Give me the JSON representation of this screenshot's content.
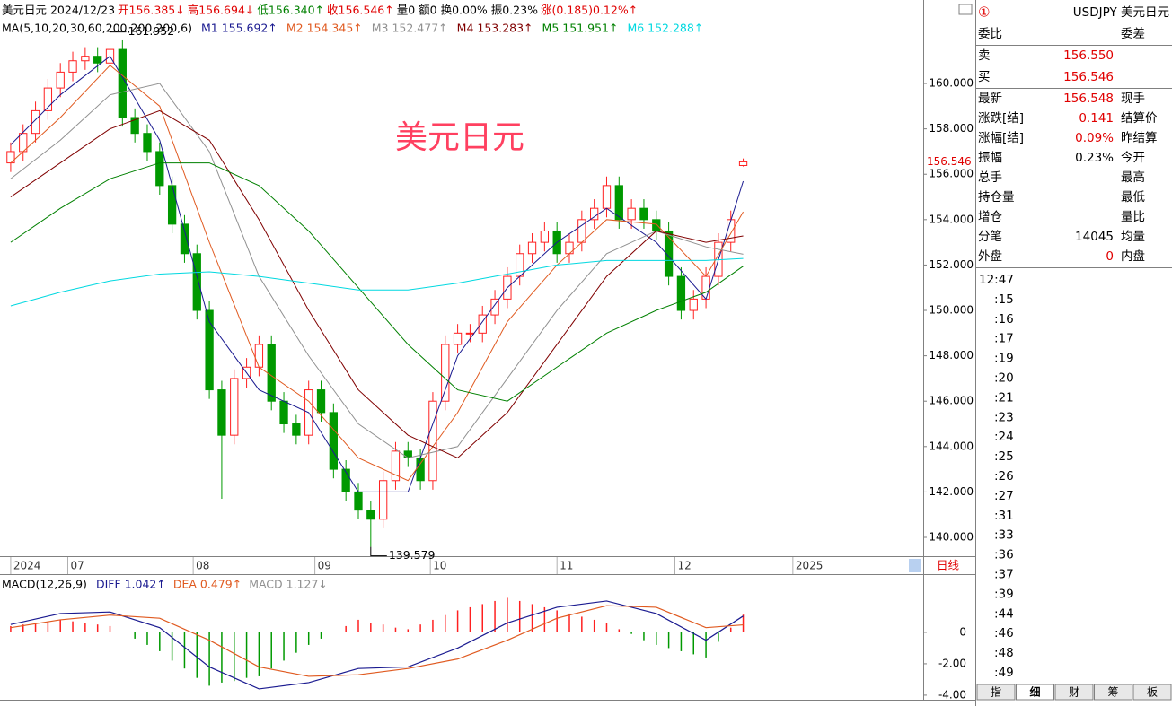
{
  "header": {
    "segments": [
      {
        "text": "美元日元 2024/12/23",
        "color": "#000000"
      },
      {
        "text": "开156.385↓",
        "color": "#e00000"
      },
      {
        "text": "高156.694↓",
        "color": "#e00000"
      },
      {
        "text": "低156.340↑",
        "color": "#008000"
      },
      {
        "text": "收156.546↑",
        "color": "#e00000"
      },
      {
        "text": "量0 额0 换0.00% 振0.23%",
        "color": "#000000"
      },
      {
        "text": "涨(0.185)0.12%↑",
        "color": "#e00000"
      }
    ]
  },
  "watermark": "美元日元",
  "period_tab": "日线",
  "last_price_label": "156.546",
  "chart_data": [
    {
      "type": "candlestick",
      "legend_title": "MA(5,10,20,30,60,200,200,200,6)",
      "xlim": [
        -0.5,
        73.5
      ],
      "xticks": [
        {
          "value": 0,
          "label": "2024"
        },
        {
          "value": 4.6,
          "label": "07"
        },
        {
          "value": 14.7,
          "label": "08"
        },
        {
          "value": 24.5,
          "label": "09"
        },
        {
          "value": 33.8,
          "label": "10"
        },
        {
          "value": 44,
          "label": "11"
        },
        {
          "value": 53.5,
          "label": "12"
        },
        {
          "value": 63,
          "label": "2025"
        }
      ],
      "ylim": [
        139.17,
        163.48
      ],
      "yticks": [
        {
          "value": 140,
          "label": "140.000"
        },
        {
          "value": 142,
          "label": "142.000"
        },
        {
          "value": 144,
          "label": "144.000"
        },
        {
          "value": 146,
          "label": "146.000"
        },
        {
          "value": 148,
          "label": "148.000"
        },
        {
          "value": 150,
          "label": "150.000"
        },
        {
          "value": 152,
          "label": "152.000"
        },
        {
          "value": 154,
          "label": "154.000"
        },
        {
          "value": 156,
          "label": "156.000"
        },
        {
          "value": 158,
          "label": "158.000"
        },
        {
          "value": 160,
          "label": "160.000"
        }
      ],
      "up_color": "#ff2020",
      "down_color": "#009900",
      "open": [
        156.5,
        157.0,
        157.8,
        158.8,
        159.8,
        160.5,
        161.0,
        161.2,
        160.9,
        161.5,
        158.5,
        157.8,
        157.0,
        155.5,
        153.8,
        152.5,
        150.0,
        146.5,
        144.5,
        147.0,
        147.5,
        148.5,
        146.0,
        145.0,
        144.5,
        146.5,
        145.5,
        143.0,
        142.0,
        141.2,
        140.8,
        142.5,
        143.8,
        143.5,
        142.5,
        146.0,
        148.5,
        149.0,
        149.0,
        149.8,
        150.5,
        151.5,
        152.5,
        153.0,
        153.5,
        152.5,
        153.0,
        154.0,
        154.5,
        155.5,
        154.0,
        154.5,
        154.0,
        153.5,
        151.5,
        150.0,
        150.5,
        151.5,
        153.0,
        156.385
      ],
      "high": [
        157.4,
        158.2,
        159.2,
        160.2,
        160.9,
        161.4,
        161.6,
        161.6,
        161.952,
        161.9,
        158.9,
        158.2,
        157.4,
        155.9,
        154.2,
        152.9,
        150.4,
        146.9,
        147.4,
        147.9,
        148.9,
        148.9,
        146.4,
        145.4,
        146.9,
        146.9,
        145.9,
        143.4,
        142.4,
        141.6,
        142.9,
        144.2,
        144.2,
        143.9,
        146.4,
        148.9,
        149.4,
        149.4,
        150.2,
        150.9,
        151.9,
        152.9,
        153.4,
        153.9,
        153.9,
        153.4,
        154.4,
        154.9,
        155.9,
        155.9,
        154.9,
        154.9,
        154.4,
        153.9,
        151.9,
        150.9,
        151.9,
        153.4,
        154.4,
        156.694
      ],
      "low": [
        156.1,
        156.6,
        157.4,
        158.4,
        159.4,
        160.1,
        160.6,
        160.5,
        160.5,
        158.1,
        157.4,
        156.6,
        155.1,
        153.4,
        152.1,
        149.6,
        146.1,
        141.7,
        144.1,
        146.6,
        147.1,
        145.6,
        144.6,
        144.1,
        144.1,
        145.1,
        142.6,
        141.6,
        140.8,
        139.579,
        140.4,
        142.1,
        143.1,
        142.1,
        142.1,
        145.6,
        148.1,
        148.6,
        148.6,
        149.4,
        150.1,
        151.1,
        152.1,
        152.6,
        152.1,
        152.1,
        152.6,
        153.6,
        154.1,
        153.6,
        153.6,
        153.6,
        153.1,
        151.1,
        149.6,
        149.6,
        150.1,
        151.1,
        152.6,
        156.34
      ],
      "close": [
        157.0,
        157.8,
        158.8,
        159.8,
        160.5,
        161.0,
        161.2,
        160.9,
        161.5,
        158.5,
        157.8,
        157.0,
        155.5,
        153.8,
        152.5,
        150.0,
        146.5,
        144.5,
        147.0,
        147.5,
        148.5,
        146.0,
        145.0,
        144.5,
        146.5,
        145.5,
        143.0,
        142.0,
        141.2,
        140.8,
        142.5,
        143.8,
        143.5,
        142.5,
        146.0,
        148.5,
        149.0,
        149.0,
        149.8,
        150.5,
        151.5,
        152.5,
        153.0,
        153.5,
        152.5,
        153.0,
        154.0,
        154.5,
        155.5,
        154.0,
        154.5,
        154.0,
        153.5,
        151.5,
        150.0,
        150.5,
        151.5,
        153.0,
        154.0,
        156.546
      ],
      "annotations": [
        {
          "text": "161.952",
          "x": 8,
          "y": 161.952
        },
        {
          "text": "139.579",
          "x": 29,
          "y": 139.579
        }
      ],
      "series": [
        {
          "name": "M1 155.692↑",
          "color": "#1a1a90",
          "x": [
            0,
            4,
            8,
            12,
            16,
            20,
            24,
            28,
            32,
            36,
            40,
            44,
            48,
            52,
            56,
            59
          ],
          "values": [
            157.3,
            159.5,
            161.2,
            157.5,
            149.5,
            146.5,
            145.5,
            142.0,
            142.0,
            148.0,
            151.0,
            153.0,
            154.5,
            153.0,
            150.5,
            155.692
          ]
        },
        {
          "name": "M2 154.345↑",
          "color": "#e05a20",
          "x": [
            0,
            4,
            8,
            12,
            16,
            20,
            24,
            28,
            32,
            36,
            40,
            44,
            48,
            52,
            56,
            59
          ],
          "values": [
            156.5,
            158.5,
            160.8,
            159.0,
            153.0,
            147.5,
            146.0,
            143.5,
            142.5,
            145.5,
            149.5,
            152.0,
            154.0,
            153.8,
            151.5,
            154.345
          ]
        },
        {
          "name": "M3 152.477↑",
          "color": "#909090",
          "x": [
            0,
            4,
            8,
            12,
            16,
            20,
            24,
            28,
            32,
            36,
            40,
            44,
            48,
            52,
            56,
            59
          ],
          "values": [
            155.8,
            157.5,
            159.5,
            160.0,
            157.0,
            151.5,
            148.0,
            145.0,
            143.5,
            144.0,
            147.0,
            150.0,
            152.5,
            153.5,
            152.8,
            152.477
          ]
        },
        {
          "name": "M4 153.283↑",
          "color": "#800000",
          "x": [
            0,
            4,
            8,
            12,
            16,
            20,
            24,
            28,
            32,
            36,
            40,
            44,
            48,
            52,
            56,
            59
          ],
          "values": [
            155.0,
            156.5,
            158.0,
            158.8,
            157.5,
            154.0,
            150.0,
            146.5,
            144.5,
            143.5,
            145.5,
            148.5,
            151.5,
            153.5,
            153.0,
            153.283
          ]
        },
        {
          "name": "M5 151.951↑",
          "color": "#008000",
          "x": [
            0,
            4,
            8,
            12,
            16,
            20,
            24,
            28,
            32,
            36,
            40,
            44,
            48,
            52,
            56,
            59
          ],
          "values": [
            153.0,
            154.5,
            155.8,
            156.5,
            156.5,
            155.5,
            153.5,
            151.0,
            148.5,
            146.5,
            146.0,
            147.5,
            149.0,
            150.0,
            150.8,
            151.951
          ]
        },
        {
          "name": "M6 152.288↑",
          "color": "#00d8e0",
          "x": [
            0,
            4,
            8,
            12,
            16,
            20,
            24,
            28,
            32,
            36,
            40,
            44,
            48,
            52,
            56,
            59
          ],
          "values": [
            150.2,
            150.8,
            151.3,
            151.6,
            151.7,
            151.5,
            151.2,
            150.9,
            150.9,
            151.2,
            151.6,
            152.0,
            152.2,
            152.2,
            152.2,
            152.288
          ]
        }
      ]
    },
    {
      "type": "macd",
      "legend_title": "MACD(12,26,9)",
      "xlim": [
        -0.5,
        73.5
      ],
      "ylim": [
        -4.29,
        3.71
      ],
      "yticks": [
        0,
        {
          "value": -2,
          "label": "-2.00"
        },
        {
          "value": -4,
          "label": "-4.00"
        }
      ],
      "series": [
        {
          "name": "DIFF 1.042↑",
          "color": "#1a1a90",
          "x": [
            0,
            4,
            8,
            12,
            16,
            20,
            24,
            28,
            32,
            36,
            40,
            44,
            48,
            52,
            56,
            59
          ],
          "values": [
            0.5,
            1.2,
            1.3,
            0.3,
            -2.2,
            -3.6,
            -3.2,
            -2.3,
            -2.2,
            -1.0,
            0.6,
            1.6,
            2.0,
            1.2,
            -0.5,
            1.042
          ]
        },
        {
          "name": "DEA 0.479↑",
          "color": "#e05a20",
          "x": [
            0,
            4,
            8,
            12,
            16,
            20,
            24,
            28,
            32,
            36,
            40,
            44,
            48,
            52,
            56,
            59
          ],
          "values": [
            0.3,
            0.8,
            1.1,
            0.9,
            -0.5,
            -2.2,
            -2.8,
            -2.7,
            -2.3,
            -1.7,
            -0.5,
            0.9,
            1.7,
            1.6,
            0.3,
            0.479
          ]
        }
      ],
      "histogram": {
        "name": "MACD 1.127↓",
        "color": "#909090",
        "up_color": "#ff2020",
        "down_color": "#009900",
        "values": [
          0.4,
          0.5,
          0.6,
          0.7,
          0.8,
          0.7,
          0.6,
          0.5,
          0.4,
          0.0,
          -0.4,
          -0.8,
          -1.2,
          -1.8,
          -2.3,
          -2.9,
          -3.4,
          -3.2,
          -3.1,
          -2.9,
          -2.8,
          -2.3,
          -1.8,
          -1.3,
          -0.8,
          -0.4,
          0.0,
          0.4,
          0.8,
          0.6,
          0.5,
          0.3,
          0.2,
          0.5,
          0.8,
          1.1,
          1.4,
          1.6,
          1.8,
          2.0,
          2.2,
          2.0,
          1.8,
          1.6,
          1.4,
          1.2,
          1.0,
          0.8,
          0.6,
          0.2,
          -0.1,
          -0.5,
          -0.8,
          -1.0,
          -1.2,
          -1.4,
          -1.6,
          -0.6,
          0.3,
          1.127
        ]
      }
    }
  ],
  "quote_panel": {
    "badge": "①",
    "symbol": "USDJPY 美元日元",
    "rows": [
      [
        {
          "text": "委比"
        },
        {
          "text": ""
        },
        {
          "text": "委差"
        }
      ],
      [
        {
          "text": "卖"
        },
        {
          "text": "156.550",
          "color": "#e00000"
        },
        null
      ],
      [
        {
          "text": "买"
        },
        {
          "text": "156.546",
          "color": "#e00000"
        },
        null
      ],
      [
        {
          "text": "最新"
        },
        {
          "text": "156.548",
          "color": "#e00000"
        },
        {
          "text": "现手"
        }
      ],
      [
        {
          "text": "涨跌[结]"
        },
        {
          "text": "0.141",
          "color": "#e00000"
        },
        {
          "text": "结算价"
        }
      ],
      [
        {
          "text": "涨幅[结]"
        },
        {
          "text": "0.09%",
          "color": "#e00000"
        },
        {
          "text": "昨结算"
        }
      ],
      [
        {
          "text": "振幅"
        },
        {
          "text": "0.23%",
          "color": "#000000"
        },
        {
          "text": "今开"
        }
      ],
      [
        {
          "text": "总手"
        },
        null,
        {
          "text": "最高"
        }
      ],
      [
        {
          "text": "持仓量"
        },
        null,
        {
          "text": "最低"
        }
      ],
      [
        {
          "text": "增仓"
        },
        null,
        {
          "text": "量比"
        }
      ],
      [
        {
          "text": "分笔"
        },
        {
          "text": "14045",
          "color": "#000000"
        },
        {
          "text": "均量"
        }
      ],
      [
        {
          "text": "外盘"
        },
        {
          "text": "0",
          "color": "#e00000"
        },
        {
          "text": "内盘"
        }
      ]
    ],
    "times": [
      "12:47",
      ":15",
      ":16",
      ":17",
      ":19",
      ":20",
      ":21",
      ":23",
      ":24",
      ":25",
      ":26",
      ":27",
      ":31",
      ":33",
      ":36",
      ":37",
      ":39",
      ":44",
      ":46",
      ":48",
      ":49"
    ],
    "tabs": [
      "指",
      "细",
      "财",
      "筹",
      "板"
    ],
    "active_tab": 1
  }
}
